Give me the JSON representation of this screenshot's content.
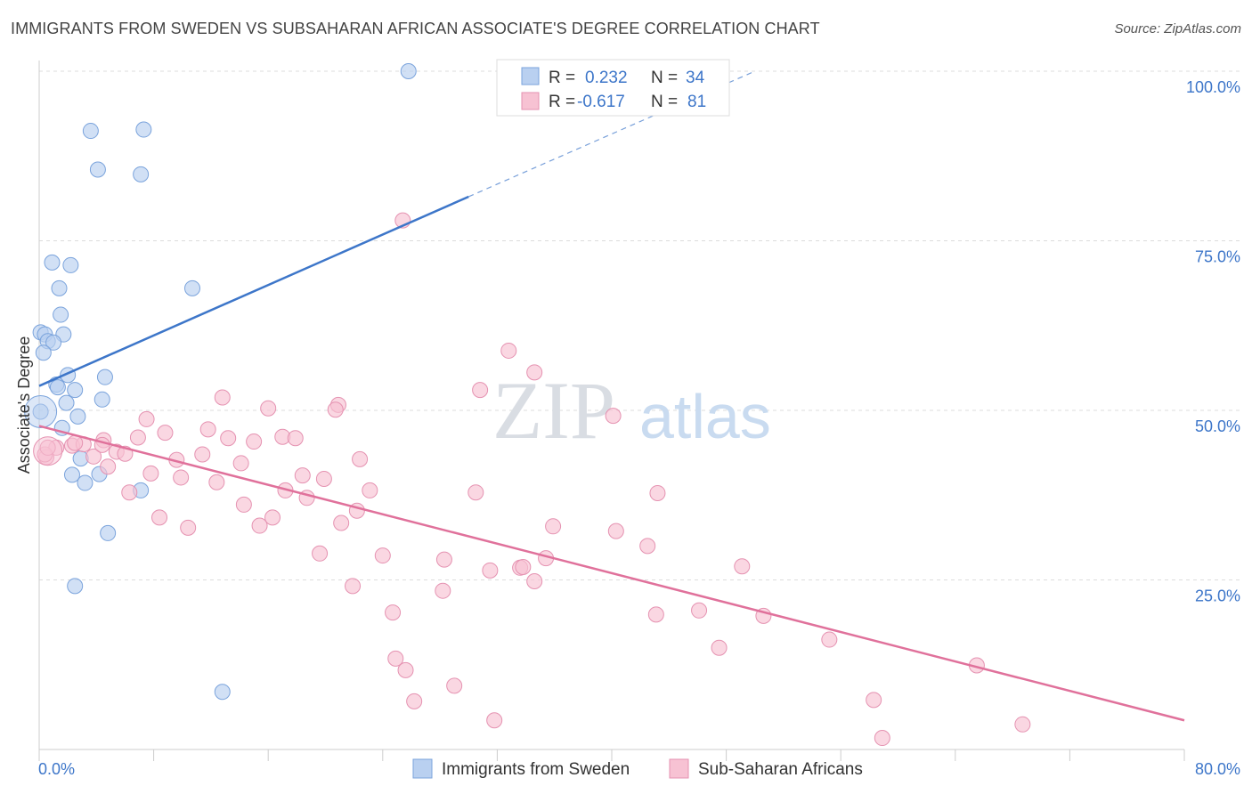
{
  "title": "IMMIGRANTS FROM SWEDEN VS SUBSAHARAN AFRICAN ASSOCIATE'S DEGREE CORRELATION CHART",
  "source": "Source: ZipAtlas.com",
  "watermark": {
    "zip": "ZIP",
    "atlas": "atlas"
  },
  "colors": {
    "blue": "#3d76c9",
    "blue_fill": "#b9d0f0",
    "pink": "#e0719b",
    "pink_fill": "#f7c2d3",
    "grid": "#dcdcdc"
  },
  "legend": {
    "r_label": "R =",
    "n_label": "N =",
    "rows": [
      {
        "r": "0.232",
        "n": "34"
      },
      {
        "r": "-0.617",
        "n": "81"
      }
    ]
  },
  "chart_data": {
    "type": "scatter",
    "title": "IMMIGRANTS FROM SWEDEN VS SUBSAHARAN AFRICAN ASSOCIATE'S DEGREE CORRELATION CHART",
    "xlabel": "",
    "ylabel": "Associate's Degree",
    "xlim": [
      0,
      80
    ],
    "ylim": [
      0,
      100
    ],
    "x_ticks": [
      "0.0%",
      "80.0%"
    ],
    "y_ticks": [
      "25.0%",
      "50.0%",
      "75.0%",
      "100.0%"
    ],
    "y_tick_values": [
      25,
      50,
      75,
      100
    ],
    "grid": true,
    "legend_position": "top-center",
    "series": [
      {
        "name": "Immigrants from Sweden",
        "color": "#3d76c9",
        "points": [
          [
            25.8,
            100
          ],
          [
            3.6,
            91.2
          ],
          [
            7.3,
            91.4
          ],
          [
            4.1,
            85.5
          ],
          [
            7.1,
            84.8
          ],
          [
            0.9,
            71.8
          ],
          [
            2.2,
            71.4
          ],
          [
            1.4,
            68.0
          ],
          [
            10.7,
            68.0
          ],
          [
            1.5,
            64.1
          ],
          [
            0.1,
            61.5
          ],
          [
            0.4,
            61.2
          ],
          [
            1.7,
            61.2
          ],
          [
            0.6,
            60.2
          ],
          [
            1.0,
            60.0
          ],
          [
            0.3,
            58.5
          ],
          [
            2.0,
            55.2
          ],
          [
            4.6,
            54.9
          ],
          [
            1.2,
            53.8
          ],
          [
            1.3,
            53.4
          ],
          [
            2.5,
            53.0
          ],
          [
            4.4,
            51.6
          ],
          [
            0.1,
            49.8
          ],
          [
            1.9,
            51.1
          ],
          [
            2.7,
            49.1
          ],
          [
            1.6,
            47.4
          ],
          [
            2.9,
            42.9
          ],
          [
            2.3,
            40.5
          ],
          [
            4.2,
            40.6
          ],
          [
            3.2,
            39.3
          ],
          [
            7.1,
            38.2
          ],
          [
            4.8,
            31.9
          ],
          [
            2.5,
            24.1
          ],
          [
            12.8,
            8.5
          ]
        ],
        "trend": {
          "x": [
            0,
            30
          ],
          "y": [
            53.6,
            81.5
          ],
          "extended_to": [
            50,
            100
          ]
        }
      },
      {
        "name": "Sub-Saharan Africans",
        "color": "#e0719b",
        "points": [
          [
            25.4,
            78.0
          ],
          [
            32.8,
            58.8
          ],
          [
            34.6,
            55.6
          ],
          [
            30.8,
            53.0
          ],
          [
            12.8,
            51.9
          ],
          [
            20.9,
            50.8
          ],
          [
            16.0,
            50.3
          ],
          [
            20.7,
            50.1
          ],
          [
            40.1,
            49.2
          ],
          [
            7.5,
            48.7
          ],
          [
            11.8,
            47.2
          ],
          [
            8.8,
            46.7
          ],
          [
            6.9,
            46.0
          ],
          [
            13.2,
            45.9
          ],
          [
            17.0,
            46.1
          ],
          [
            17.9,
            45.9
          ],
          [
            4.5,
            45.6
          ],
          [
            2.3,
            44.8
          ],
          [
            3.1,
            45.0
          ],
          [
            2.5,
            45.2
          ],
          [
            15.0,
            45.4
          ],
          [
            3.8,
            43.2
          ],
          [
            1.2,
            44.5
          ],
          [
            4.4,
            44.9
          ],
          [
            0.5,
            43.1
          ],
          [
            5.4,
            43.9
          ],
          [
            6.0,
            43.6
          ],
          [
            11.4,
            43.5
          ],
          [
            9.6,
            42.7
          ],
          [
            22.4,
            42.8
          ],
          [
            14.1,
            42.2
          ],
          [
            4.8,
            41.7
          ],
          [
            7.8,
            40.7
          ],
          [
            18.4,
            40.4
          ],
          [
            9.9,
            40.1
          ],
          [
            19.9,
            39.9
          ],
          [
            12.4,
            39.4
          ],
          [
            17.2,
            38.2
          ],
          [
            23.1,
            38.2
          ],
          [
            30.5,
            37.9
          ],
          [
            43.2,
            37.8
          ],
          [
            6.3,
            37.9
          ],
          [
            18.7,
            37.1
          ],
          [
            14.3,
            36.1
          ],
          [
            22.2,
            35.2
          ],
          [
            8.4,
            34.2
          ],
          [
            16.3,
            34.2
          ],
          [
            21.1,
            33.4
          ],
          [
            15.4,
            33.0
          ],
          [
            10.4,
            32.7
          ],
          [
            35.9,
            32.9
          ],
          [
            40.3,
            32.2
          ],
          [
            42.5,
            30.0
          ],
          [
            19.6,
            28.9
          ],
          [
            24.0,
            28.6
          ],
          [
            28.3,
            28.0
          ],
          [
            35.4,
            28.2
          ],
          [
            33.6,
            26.8
          ],
          [
            33.8,
            26.9
          ],
          [
            31.5,
            26.4
          ],
          [
            49.1,
            27.0
          ],
          [
            34.6,
            24.8
          ],
          [
            21.9,
            24.1
          ],
          [
            28.2,
            23.4
          ],
          [
            24.7,
            20.2
          ],
          [
            50.6,
            19.7
          ],
          [
            43.1,
            19.9
          ],
          [
            46.1,
            20.5
          ],
          [
            55.2,
            16.2
          ],
          [
            47.5,
            15.0
          ],
          [
            24.9,
            13.4
          ],
          [
            25.6,
            11.7
          ],
          [
            65.5,
            12.4
          ],
          [
            29.0,
            9.4
          ],
          [
            26.2,
            7.1
          ],
          [
            58.3,
            7.3
          ],
          [
            31.8,
            4.3
          ],
          [
            68.7,
            3.7
          ],
          [
            58.9,
            1.7
          ],
          [
            0.4,
            43.5
          ],
          [
            0.6,
            44.5
          ]
        ],
        "trend": {
          "x": [
            0,
            80
          ],
          "y": [
            47.7,
            4.3
          ]
        }
      }
    ]
  }
}
